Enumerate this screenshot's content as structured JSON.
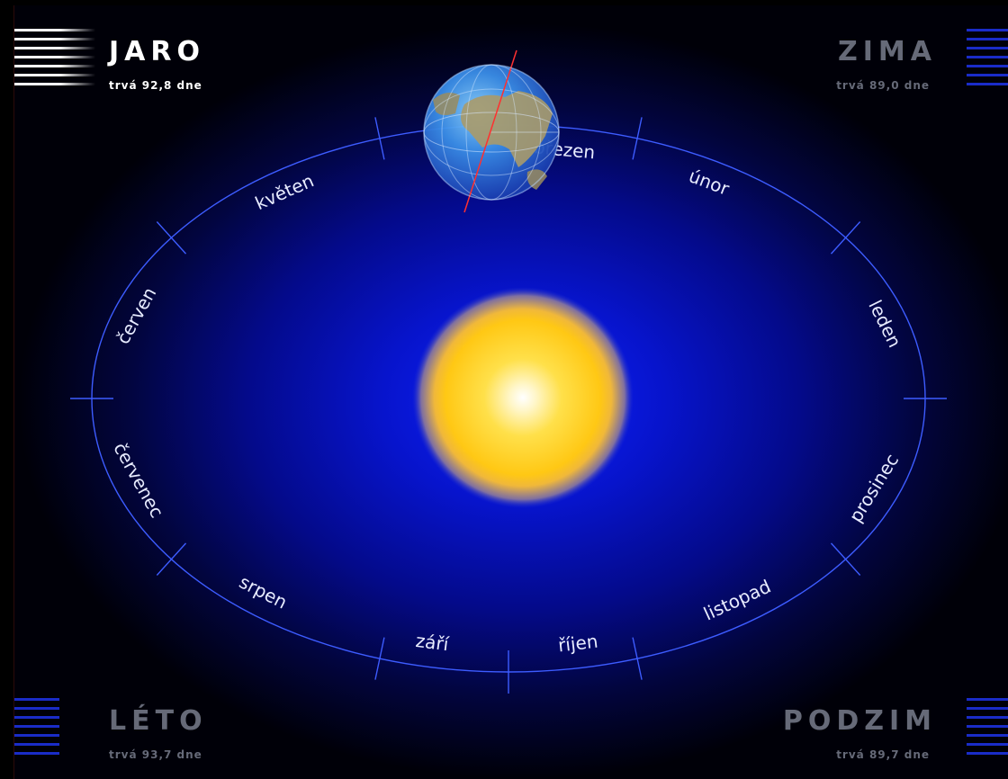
{
  "seasons": {
    "spring": {
      "name": "JARO",
      "duration": "trvá 92,8 dne"
    },
    "winter": {
      "name": "ZIMA",
      "duration": "trvá 89,0 dne"
    },
    "summer": {
      "name": "LÉTO",
      "duration": "trvá 93,7 dne"
    },
    "autumn": {
      "name": "PODZIM",
      "duration": "trvá 89,7 dne"
    }
  },
  "months": [
    {
      "id": "brezen",
      "label": "březen",
      "angle": 82
    },
    {
      "id": "unor",
      "label": "únor",
      "angle": 60
    },
    {
      "id": "leden",
      "label": "leden",
      "angle": 18
    },
    {
      "id": "prosinec",
      "label": "prosinec",
      "angle": -22
    },
    {
      "id": "listopad",
      "label": "listopad",
      "angle": -55
    },
    {
      "id": "rijen",
      "label": "říjen",
      "angle": -80
    },
    {
      "id": "zari",
      "label": "září",
      "angle": -101
    },
    {
      "id": "srpen",
      "label": "srpen",
      "angle": -128
    },
    {
      "id": "cervenec",
      "label": "červenec",
      "angle": -160
    },
    {
      "id": "cerven",
      "label": "červen",
      "angle": 160
    },
    {
      "id": "kveten",
      "label": "květen",
      "angle": 124
    }
  ],
  "ticks": [
    90,
    72,
    36,
    0,
    -36,
    -72,
    -90,
    -108,
    -144,
    180,
    144,
    108
  ],
  "colors": {
    "orbit": "#3d5cff",
    "sun": "#ffd21a",
    "active_text": "#ffffff",
    "dim_text": "#666a78"
  },
  "icons": {
    "sun": "sun-icon",
    "earth": "earth-globe-icon"
  }
}
